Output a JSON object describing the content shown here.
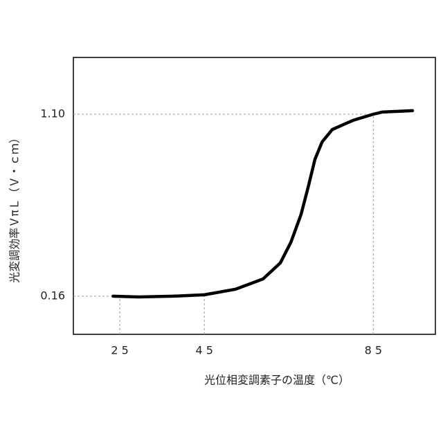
{
  "chart_data": {
    "type": "line",
    "xlabel": "光位相変調素子の温度（℃）",
    "ylabel": "光変調効率ＶπＬ（Ｖ・ｃｍ）",
    "x": [
      23.4,
      29.4,
      37.6,
      45,
      52.4,
      58.9,
      63,
      65.5,
      67.9,
      69.6,
      71.2,
      72.9,
      75.3,
      80.2,
      85,
      87.1,
      94.3
    ],
    "series": [
      {
        "color": "#000000",
        "values": [
          0.16,
          0.156,
          0.16,
          0.167,
          0.196,
          0.249,
          0.332,
          0.439,
          0.582,
          0.725,
          0.868,
          0.957,
          1.021,
          1.068,
          1.1,
          1.111,
          1.118
        ]
      }
    ],
    "xlim": [
      14,
      99.7
    ],
    "ylim": [
      -0.037,
      1.393
    ],
    "xticks": [
      {
        "value": 25,
        "label": "2 5"
      },
      {
        "value": 45,
        "label": "4 5"
      },
      {
        "value": 85,
        "label": "8 5"
      }
    ],
    "yticks": [
      0.16,
      {
        "value": 1.1,
        "label": "1.10"
      }
    ],
    "guides": true
  }
}
